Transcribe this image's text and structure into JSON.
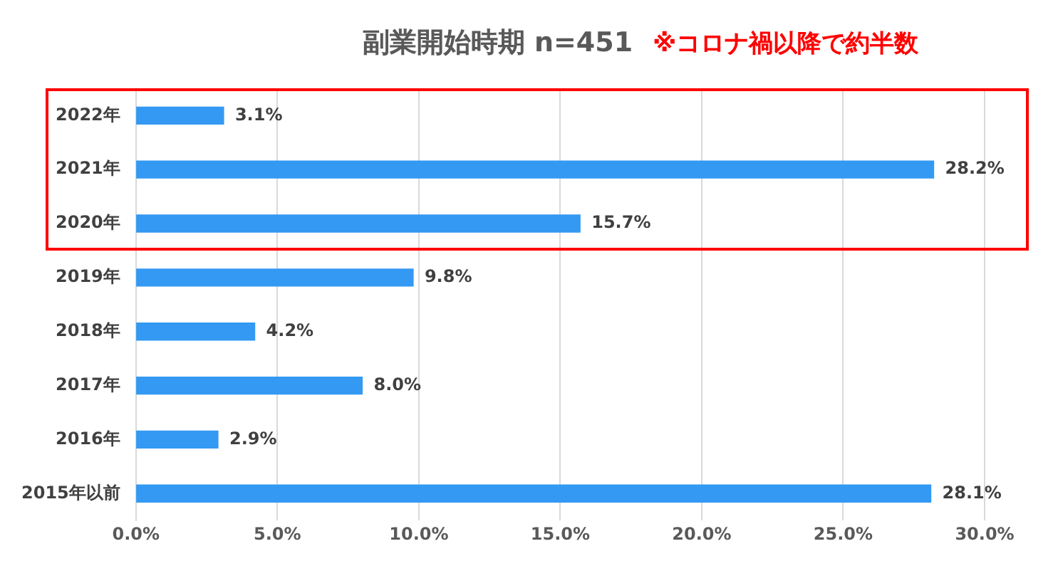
{
  "chart_data": {
    "type": "bar",
    "orientation": "horizontal",
    "title": "副業開始時期 n=451",
    "subtitle": "※コロナ禍以降で約半数",
    "categories": [
      "2022年",
      "2021年",
      "2020年",
      "2019年",
      "2018年",
      "2017年",
      "2016年",
      "2015年以前"
    ],
    "values": [
      3.1,
      28.2,
      15.7,
      9.8,
      4.2,
      8.0,
      2.9,
      28.1
    ],
    "value_labels": [
      "3.1%",
      "28.2%",
      "15.7%",
      "9.8%",
      "4.2%",
      "8.0%",
      "2.9%",
      "28.1%"
    ],
    "color": "#3399f3",
    "xlim": [
      0,
      30
    ],
    "xticks": [
      {
        "value": 0,
        "label": "0.0%"
      },
      {
        "value": 5,
        "label": "5.0%"
      },
      {
        "value": 10,
        "label": "10.0%"
      },
      {
        "value": 15,
        "label": "15.0%"
      },
      {
        "value": 20,
        "label": "20.0%"
      },
      {
        "value": 25,
        "label": "25.0%"
      },
      {
        "value": 30,
        "label": "30.0%"
      }
    ],
    "grid": "x",
    "legend": false
  }
}
